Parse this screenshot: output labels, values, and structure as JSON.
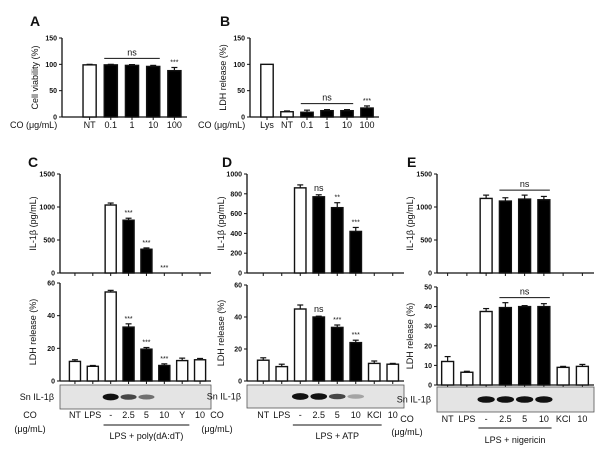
{
  "chart_data": [
    {
      "panel": "A",
      "type": "bar",
      "ylabel": "Cell viability (%)",
      "xlabel": "CO (μg/mL)",
      "ylim": [
        0,
        150
      ],
      "yticks": [
        0,
        50,
        100,
        150
      ],
      "categories": [
        "NT",
        "0.1",
        "1",
        "10",
        "100"
      ],
      "values": [
        99,
        99,
        98,
        96,
        88
      ],
      "errors": [
        1,
        1,
        1.5,
        2,
        6
      ],
      "filled": [
        false,
        true,
        true,
        true,
        true
      ],
      "annotations": [
        "",
        "",
        "",
        "",
        "***"
      ],
      "bracket": {
        "label": "ns",
        "from": 1,
        "to": 3
      }
    },
    {
      "panel": "B",
      "type": "bar",
      "ylabel": "LDH release (%)",
      "xlabel": "CO (μg/mL)",
      "ylim": [
        0,
        150
      ],
      "yticks": [
        0,
        50,
        100,
        150
      ],
      "categories": [
        "Lys",
        "NT",
        "0.1",
        "1",
        "10",
        "100"
      ],
      "values": [
        100,
        10,
        9,
        12,
        12,
        17
      ],
      "errors": [
        0,
        1.5,
        4,
        2,
        2,
        4
      ],
      "filled": [
        false,
        false,
        true,
        true,
        true,
        true
      ],
      "annotations": [
        "",
        "",
        "",
        "",
        "",
        "***"
      ],
      "bracket": {
        "label": "ns",
        "from": 2,
        "to": 4
      }
    },
    {
      "panel": "C",
      "type": "bar",
      "ylabel": "IL-1β (pg/mL)",
      "ylim": [
        0,
        1500
      ],
      "yticks": [
        0,
        500,
        1000,
        1500
      ],
      "categories": [
        "NT",
        "LPS",
        "-",
        "2.5",
        "5",
        "10",
        "Y",
        "10"
      ],
      "values": [
        0,
        0,
        1030,
        800,
        360,
        0,
        0,
        0
      ],
      "errors": [
        0,
        0,
        30,
        30,
        20,
        0,
        0,
        0
      ],
      "filled": [
        false,
        false,
        false,
        true,
        true,
        true,
        false,
        false
      ],
      "annotations": [
        "",
        "",
        "",
        "***",
        "***",
        "***",
        "",
        ""
      ]
    },
    {
      "panel": "C",
      "type": "bar",
      "ylabel": "LDH release (%)",
      "ylim": [
        0,
        60
      ],
      "yticks": [
        0,
        20,
        40,
        60
      ],
      "categories": [
        "NT",
        "LPS",
        "-",
        "2.5",
        "5",
        "10",
        "Y",
        "10"
      ],
      "values": [
        12,
        9,
        54.5,
        33,
        19.5,
        9.5,
        12.5,
        13
      ],
      "errors": [
        1,
        0.5,
        1,
        2,
        1,
        1,
        1.5,
        0.8
      ],
      "filled": [
        false,
        false,
        false,
        true,
        true,
        true,
        false,
        false
      ],
      "annotations": [
        "",
        "",
        "",
        "***",
        "***",
        "***",
        "",
        ""
      ]
    },
    {
      "panel": "D",
      "type": "bar",
      "ylabel": "IL-1β (pg/mL)",
      "ylim": [
        0,
        1000
      ],
      "yticks": [
        0,
        200,
        400,
        600,
        800,
        1000
      ],
      "categories": [
        "NT",
        "LPS",
        "-",
        "2.5",
        "5",
        "10",
        "KCl",
        "10"
      ],
      "values": [
        0,
        0,
        860,
        770,
        660,
        420,
        0,
        0
      ],
      "errors": [
        0,
        0,
        30,
        20,
        50,
        40,
        0,
        0
      ],
      "filled": [
        false,
        false,
        false,
        true,
        true,
        true,
        false,
        false
      ],
      "annotations": [
        "",
        "",
        "",
        "ns",
        "**",
        "***",
        "",
        ""
      ]
    },
    {
      "panel": "D",
      "type": "bar",
      "ylabel": "LDH release (%)",
      "ylim": [
        0,
        60
      ],
      "yticks": [
        0,
        20,
        40,
        60
      ],
      "categories": [
        "NT",
        "LPS",
        "-",
        "2.5",
        "5",
        "10",
        "KCl",
        "10"
      ],
      "values": [
        13,
        9,
        45,
        40,
        33.5,
        24,
        11,
        10.5
      ],
      "errors": [
        1.5,
        1.5,
        2.5,
        0.5,
        1.5,
        1.5,
        1.5,
        0.5
      ],
      "filled": [
        false,
        false,
        false,
        true,
        true,
        true,
        false,
        false
      ],
      "annotations": [
        "",
        "",
        "",
        "ns",
        "***",
        "***",
        "",
        ""
      ]
    },
    {
      "panel": "E",
      "type": "bar",
      "ylabel": "IL-1β (pg/mL)",
      "ylim": [
        0,
        1500
      ],
      "yticks": [
        0,
        500,
        1000,
        1500
      ],
      "categories": [
        "NT",
        "LPS",
        "-",
        "2.5",
        "5",
        "10",
        "KCl",
        "10"
      ],
      "values": [
        0,
        0,
        1130,
        1090,
        1120,
        1110,
        0,
        0
      ],
      "errors": [
        0,
        0,
        50,
        50,
        60,
        50,
        0,
        0
      ],
      "filled": [
        false,
        false,
        false,
        true,
        true,
        true,
        false,
        false
      ],
      "annotations": [
        "",
        "",
        "",
        "",
        "",
        "",
        "",
        ""
      ],
      "bracket": {
        "label": "ns",
        "from": 3,
        "to": 5
      }
    },
    {
      "panel": "E",
      "type": "bar",
      "ylabel": "LDH release (%)",
      "ylim": [
        0,
        50
      ],
      "yticks": [
        0,
        10,
        20,
        30,
        40,
        50
      ],
      "categories": [
        "NT",
        "LPS",
        "-",
        "2.5",
        "5",
        "10",
        "KCl",
        "10"
      ],
      "values": [
        12,
        6.5,
        37.5,
        39.5,
        40,
        40,
        9,
        9.5
      ],
      "errors": [
        2.5,
        0.5,
        1.5,
        2.5,
        0.5,
        1.5,
        0.5,
        1
      ],
      "filled": [
        false,
        false,
        false,
        true,
        true,
        true,
        false,
        false
      ],
      "annotations": [
        "",
        "",
        "",
        "",
        "",
        "",
        "",
        ""
      ],
      "bracket": {
        "label": "ns",
        "from": 3,
        "to": 5
      }
    }
  ],
  "panels": [
    {
      "id": "A",
      "letter": "A"
    },
    {
      "id": "B",
      "letter": "B"
    },
    {
      "id": "C",
      "letter": "C",
      "blot_label": "Sn IL-1β",
      "band_intensity": [
        0,
        0,
        1,
        0.5,
        0.3,
        0,
        0,
        0
      ],
      "co_label": "CO",
      "unit_label": "(μg/mL)",
      "group_label": "LPS + poly(dA:dT)",
      "group_from": 2,
      "group_to": 6
    },
    {
      "id": "D",
      "letter": "D",
      "blot_label": "Sn IL-1β",
      "band_intensity": [
        0,
        0,
        1,
        0.9,
        0.5,
        0.05,
        0,
        0
      ],
      "co_label": "CO",
      "unit_label": "(μg/mL)",
      "group_label": "LPS + ATP",
      "group_from": 2,
      "group_to": 6
    },
    {
      "id": "E",
      "letter": "E",
      "blot_label": "Sn IL-1β",
      "band_intensity": [
        0,
        0,
        0.9,
        0.9,
        0.9,
        0.9,
        0,
        0
      ],
      "co_label": "CO",
      "unit_label": "(μg/mL)",
      "group_label": "LPS + nigericin",
      "group_from": 2,
      "group_to": 5
    }
  ],
  "colors": {
    "filled_bar": "#000000",
    "open_bar": "#ffffff",
    "axis": "#111111",
    "blot_bg": "#e4e4e4",
    "band": "#111111"
  }
}
